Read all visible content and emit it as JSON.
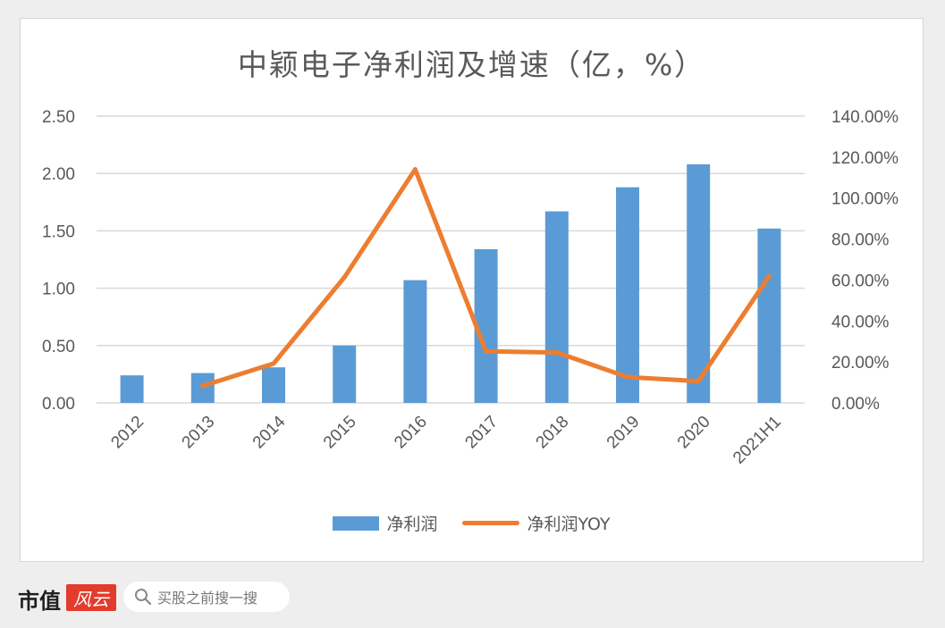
{
  "chart_data": {
    "type": "bar",
    "title": "中颖电子净利润及增速（亿，%）",
    "categories": [
      "2012",
      "2013",
      "2014",
      "2015",
      "2016",
      "2017",
      "2018",
      "2019",
      "2020",
      "2021H1"
    ],
    "series": [
      {
        "name": "净利润",
        "type": "bar",
        "axis": "left",
        "color": "#5b9bd5",
        "values": [
          0.24,
          0.26,
          0.31,
          0.5,
          1.07,
          1.34,
          1.67,
          1.88,
          2.08,
          1.52
        ]
      },
      {
        "name": "净利润YOY",
        "type": "line",
        "axis": "right",
        "color": "#ed7d31",
        "values": [
          null,
          8.3,
          19.2,
          61.3,
          114.0,
          25.2,
          24.6,
          12.6,
          10.6,
          61.9
        ]
      }
    ],
    "y_left": {
      "ticks": [
        "0.00",
        "0.50",
        "1.00",
        "1.50",
        "2.00",
        "2.50"
      ],
      "ylim": [
        0,
        2.5
      ]
    },
    "y_right": {
      "ticks": [
        "0.00%",
        "20.00%",
        "40.00%",
        "60.00%",
        "80.00%",
        "100.00%",
        "120.00%",
        "140.00%"
      ],
      "ylim": [
        0,
        140
      ]
    },
    "grid": true,
    "legend_position": "bottom"
  },
  "footer": {
    "brand": "市值",
    "brand_logo": "风云",
    "search_placeholder": "买股之前搜一搜"
  }
}
